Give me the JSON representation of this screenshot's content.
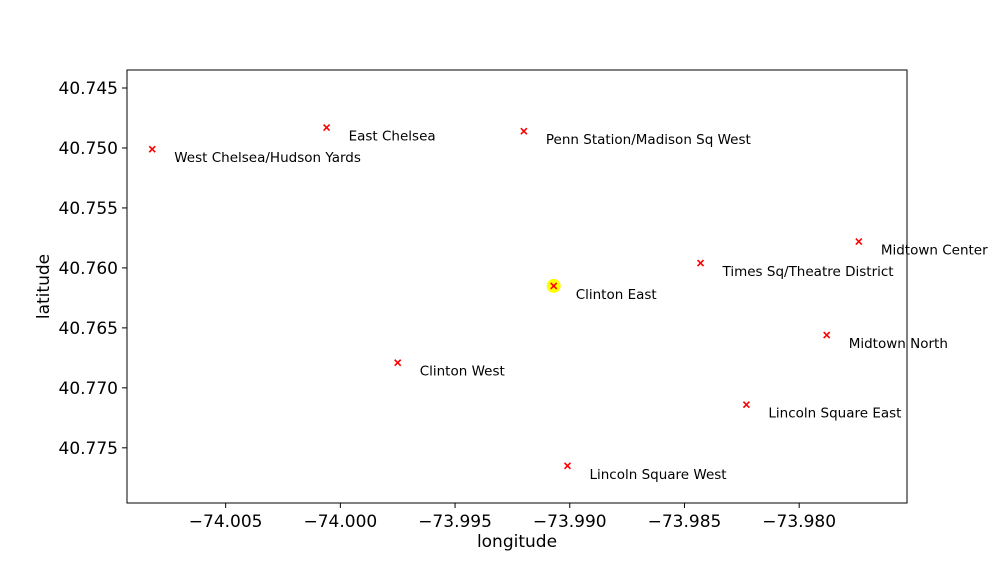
{
  "chart_data": {
    "type": "scatter",
    "xlabel": "longitude",
    "ylabel": "latitude",
    "xlim": [
      -74.0093,
      -73.9753
    ],
    "ylim": [
      40.7796,
      40.7435
    ],
    "y_inverted": true,
    "grid": false,
    "x_ticks": [
      -74.005,
      -74.0,
      -73.995,
      -73.99,
      -73.985,
      -73.98
    ],
    "x_tick_labels": [
      "−74.005",
      "−74.000",
      "−73.995",
      "−73.990",
      "−73.985",
      "−73.980"
    ],
    "y_ticks": [
      40.745,
      40.75,
      40.755,
      40.76,
      40.765,
      40.77,
      40.775
    ],
    "y_tick_labels": [
      "40.745",
      "40.750",
      "40.755",
      "40.760",
      "40.765",
      "40.770",
      "40.775"
    ],
    "marker_color": "#ff0000",
    "highlight_color": "#ffff00",
    "points": [
      {
        "name": "West Chelsea/Hudson Yards",
        "x": -74.0082,
        "y": 40.7501
      },
      {
        "name": "East Chelsea",
        "x": -74.0006,
        "y": 40.7483
      },
      {
        "name": "Penn Station/Madison Sq West",
        "x": -73.992,
        "y": 40.7486
      },
      {
        "name": "Midtown Center",
        "x": -73.9774,
        "y": 40.7578
      },
      {
        "name": "Times Sq/Theatre District",
        "x": -73.9843,
        "y": 40.7596
      },
      {
        "name": "Clinton East",
        "x": -73.9907,
        "y": 40.7615,
        "highlight": true
      },
      {
        "name": "Midtown North",
        "x": -73.9788,
        "y": 40.7656
      },
      {
        "name": "Clinton West",
        "x": -73.9975,
        "y": 40.7679
      },
      {
        "name": "Lincoln Square East",
        "x": -73.9823,
        "y": 40.7714
      },
      {
        "name": "Lincoln Square West",
        "x": -73.9901,
        "y": 40.7765
      }
    ]
  }
}
